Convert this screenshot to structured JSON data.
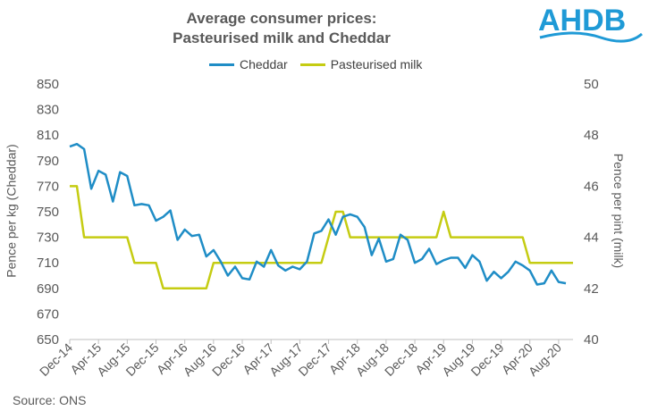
{
  "header": {
    "title_line1": "Average consumer prices:",
    "title_line2": "Pasteurised milk and Cheddar",
    "logo_text": "AHDB"
  },
  "source": "Source:  ONS",
  "colors": {
    "cheddar": "#1f8dc6",
    "milk": "#c5cc12",
    "axis": "#bfbfbf",
    "text": "#595959",
    "logo": "#1f9ad6"
  },
  "chart_data": {
    "type": "line",
    "legend_position": "top",
    "grid": false,
    "xlabel": "",
    "x_tick_labels": [
      "Dec-14",
      "Apr-15",
      "Aug-15",
      "Dec-15",
      "Apr-16",
      "Aug-16",
      "Dec-16",
      "Apr-17",
      "Aug-17",
      "Dec-17",
      "Apr-18",
      "Aug-18",
      "Dec-18",
      "Apr-19",
      "Aug-19",
      "Dec-19",
      "Apr-20",
      "Aug-20"
    ],
    "x_months_start": "Dec-14",
    "y_left": {
      "label": "Pence per kg (Cheddar)",
      "ylim": [
        650,
        850
      ],
      "ticks": [
        "650",
        "670",
        "690",
        "710",
        "730",
        "750",
        "770",
        "790",
        "810",
        "830",
        "850"
      ]
    },
    "y_right": {
      "label": "Pence per pint (milk)",
      "ylim": [
        40,
        50
      ],
      "ticks": [
        "40",
        "42",
        "44",
        "46",
        "48",
        "50"
      ]
    },
    "series": [
      {
        "name": "Cheddar",
        "axis": "left",
        "values": [
          801,
          803,
          799,
          768,
          782,
          779,
          758,
          781,
          778,
          755,
          756,
          755,
          743,
          746,
          751,
          728,
          736,
          731,
          732,
          715,
          720,
          711,
          700,
          707,
          698,
          697,
          711,
          707,
          720,
          708,
          704,
          707,
          705,
          711,
          733,
          735,
          744,
          732,
          746,
          748,
          746,
          738,
          716,
          729,
          711,
          713,
          732,
          728,
          710,
          713,
          721,
          709,
          712,
          714,
          714,
          706,
          716,
          711,
          696,
          703,
          698,
          703,
          711,
          708,
          704,
          693,
          694,
          704,
          695,
          694
        ]
      },
      {
        "name": "Pasteurised milk",
        "axis": "right",
        "values": [
          46,
          46,
          44,
          44,
          44,
          44,
          44,
          44,
          44,
          43,
          43,
          43,
          43,
          42,
          42,
          42,
          42,
          42,
          42,
          42,
          43,
          43,
          43,
          43,
          43,
          43,
          43,
          43,
          43,
          43,
          43,
          43,
          43,
          43,
          43,
          43,
          44,
          45,
          45,
          44,
          44,
          44,
          44,
          44,
          44,
          44,
          44,
          44,
          44,
          44,
          44,
          44,
          45,
          44,
          44,
          44,
          44,
          44,
          44,
          44,
          44,
          44,
          44,
          44,
          43,
          43,
          43,
          43,
          43,
          43,
          43
        ]
      }
    ]
  }
}
